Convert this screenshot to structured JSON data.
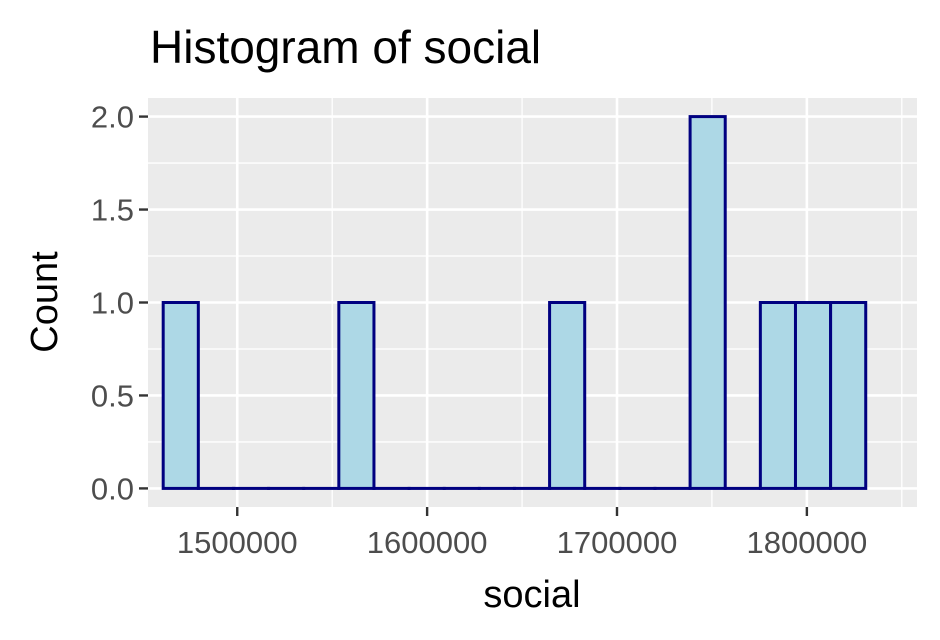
{
  "chart_data": {
    "type": "bar",
    "title": "Histogram of social",
    "xlabel": "social",
    "ylabel": "Count",
    "bin_width": 18500,
    "bins": [
      {
        "x0": 1461000,
        "x1": 1479500,
        "count": 1
      },
      {
        "x0": 1479500,
        "x1": 1498000,
        "count": 0
      },
      {
        "x0": 1498000,
        "x1": 1516500,
        "count": 0
      },
      {
        "x0": 1516500,
        "x1": 1535000,
        "count": 0
      },
      {
        "x0": 1535000,
        "x1": 1553500,
        "count": 0
      },
      {
        "x0": 1553500,
        "x1": 1572000,
        "count": 1
      },
      {
        "x0": 1572000,
        "x1": 1590500,
        "count": 0
      },
      {
        "x0": 1590500,
        "x1": 1609000,
        "count": 0
      },
      {
        "x0": 1609000,
        "x1": 1627500,
        "count": 0
      },
      {
        "x0": 1627500,
        "x1": 1646000,
        "count": 0
      },
      {
        "x0": 1646000,
        "x1": 1664500,
        "count": 0
      },
      {
        "x0": 1664500,
        "x1": 1683000,
        "count": 1
      },
      {
        "x0": 1683000,
        "x1": 1701500,
        "count": 0
      },
      {
        "x0": 1701500,
        "x1": 1720000,
        "count": 0
      },
      {
        "x0": 1720000,
        "x1": 1738500,
        "count": 0
      },
      {
        "x0": 1738500,
        "x1": 1757000,
        "count": 2
      },
      {
        "x0": 1757000,
        "x1": 1775500,
        "count": 0
      },
      {
        "x0": 1775500,
        "x1": 1794000,
        "count": 1
      },
      {
        "x0": 1794000,
        "x1": 1812500,
        "count": 1
      },
      {
        "x0": 1812500,
        "x1": 1831000,
        "count": 1
      }
    ],
    "xlim": [
      1453000,
      1858000
    ],
    "ylim": [
      -0.1,
      2.1
    ],
    "x_ticks": [
      1500000,
      1600000,
      1700000,
      1800000
    ],
    "x_tick_labels": [
      "1500000",
      "1600000",
      "1700000",
      "1800000"
    ],
    "x_minor_ticks": [
      1450000,
      1550000,
      1650000,
      1750000,
      1850000
    ],
    "y_ticks": [
      0,
      0.5,
      1,
      1.5,
      2
    ],
    "y_tick_labels": [
      "0.0",
      "0.5",
      "1.0",
      "1.5",
      "2.0"
    ],
    "y_minor_ticks": [
      0.25,
      0.75,
      1.25,
      1.75
    ],
    "grid": true,
    "legend": "none",
    "colors": {
      "panel_background": "#ebebeb",
      "grid": "#ffffff",
      "bar_fill": "#add8e6",
      "bar_stroke": "#000080",
      "tick": "#333333"
    }
  }
}
